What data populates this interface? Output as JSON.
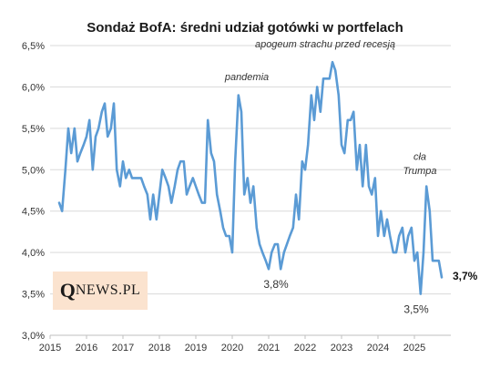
{
  "chart_data": {
    "type": "line",
    "title": "Sondaż BofA: średni udział gotówki w portfelach",
    "xlabel": "",
    "ylabel": "",
    "y_ticks": [
      "3,0%",
      "3,5%",
      "4,0%",
      "4,5%",
      "5,0%",
      "5,5%",
      "6,0%",
      "6,5%"
    ],
    "ylim": [
      3.0,
      6.5
    ],
    "x_ticks": [
      "2015",
      "2016",
      "2017",
      "2018",
      "2019",
      "2020",
      "2021",
      "2022",
      "2023",
      "2024",
      "2025"
    ],
    "xlim": [
      2015.0,
      2026.0
    ],
    "grid": true,
    "line_color": "#5b9bd5",
    "series": [
      {
        "x": [
          2015.25,
          2015.33,
          2015.42,
          2015.5,
          2015.58,
          2015.67,
          2015.75,
          2015.83,
          2015.92,
          2016.0,
          2016.08,
          2016.17,
          2016.25,
          2016.33,
          2016.42,
          2016.5,
          2016.58,
          2016.67,
          2016.75,
          2016.83,
          2016.92,
          2017.0,
          2017.08,
          2017.17,
          2017.25,
          2017.33,
          2017.42,
          2017.5,
          2017.58,
          2017.67,
          2017.75,
          2017.83,
          2017.92,
          2018.0,
          2018.08,
          2018.17,
          2018.25,
          2018.33,
          2018.42,
          2018.5,
          2018.58,
          2018.67,
          2018.75,
          2018.83,
          2018.92,
          2019.0,
          2019.08,
          2019.17,
          2019.25,
          2019.33,
          2019.42,
          2019.5,
          2019.58,
          2019.67,
          2019.75,
          2019.83,
          2019.92,
          2020.0,
          2020.08,
          2020.17,
          2020.25,
          2020.33,
          2020.42,
          2020.5,
          2020.58,
          2020.67,
          2020.75,
          2020.83,
          2020.92,
          2021.0,
          2021.08,
          2021.17,
          2021.25,
          2021.33,
          2021.42,
          2021.5,
          2021.58,
          2021.67,
          2021.75,
          2021.83,
          2021.92,
          2022.0,
          2022.08,
          2022.17,
          2022.25,
          2022.33,
          2022.42,
          2022.5,
          2022.58,
          2022.67,
          2022.75,
          2022.83,
          2022.92,
          2023.0,
          2023.08,
          2023.17,
          2023.25,
          2023.33,
          2023.42,
          2023.5,
          2023.58,
          2023.67,
          2023.75,
          2023.83,
          2023.92,
          2024.0,
          2024.08,
          2024.17,
          2024.25,
          2024.33,
          2024.42,
          2024.5,
          2024.58,
          2024.67,
          2024.75,
          2024.83,
          2024.92,
          2025.0,
          2025.08,
          2025.17,
          2025.25,
          2025.33,
          2025.42,
          2025.5,
          2025.58,
          2025.67,
          2025.75
        ],
        "values": [
          4.6,
          4.5,
          5.0,
          5.5,
          5.2,
          5.5,
          5.1,
          5.2,
          5.3,
          5.4,
          5.6,
          5.0,
          5.4,
          5.5,
          5.7,
          5.8,
          5.4,
          5.5,
          5.8,
          5.0,
          4.8,
          5.1,
          4.9,
          5.0,
          4.9,
          4.9,
          4.9,
          4.9,
          4.8,
          4.7,
          4.4,
          4.7,
          4.4,
          4.7,
          5.0,
          4.9,
          4.8,
          4.6,
          4.8,
          5.0,
          5.1,
          5.1,
          4.7,
          4.8,
          4.9,
          4.8,
          4.7,
          4.6,
          4.6,
          5.6,
          5.2,
          5.1,
          4.7,
          4.5,
          4.3,
          4.2,
          4.2,
          4.0,
          5.1,
          5.9,
          5.7,
          4.7,
          4.9,
          4.6,
          4.8,
          4.3,
          4.1,
          4.0,
          3.9,
          3.8,
          4.0,
          4.1,
          4.1,
          3.8,
          4.0,
          4.1,
          4.2,
          4.3,
          4.7,
          4.4,
          5.1,
          5.0,
          5.3,
          5.9,
          5.6,
          6.0,
          5.7,
          6.1,
          6.1,
          6.1,
          6.3,
          6.2,
          5.9,
          5.3,
          5.2,
          5.6,
          5.6,
          5.7,
          5.0,
          5.3,
          4.8,
          5.3,
          4.8,
          4.7,
          4.9,
          4.2,
          4.5,
          4.2,
          4.4,
          4.2,
          4.0,
          4.0,
          4.2,
          4.3,
          4.0,
          4.2,
          4.3,
          3.9,
          4.0,
          3.5,
          4.0,
          4.8,
          4.5,
          3.9,
          3.9,
          3.9,
          3.7
        ]
      }
    ],
    "annotations": [
      {
        "text": "pandemia",
        "x": 2020.4,
        "y": 6.08
      },
      {
        "text": "apogeum strachu przed recesją",
        "x": 2022.55,
        "y": 6.48
      },
      {
        "text": "cła",
        "x": 2025.15,
        "y": 5.12
      },
      {
        "text": "Trumpa",
        "x": 2025.15,
        "y": 4.95
      }
    ],
    "value_labels": [
      {
        "text": "3,8%",
        "x": 2021.2,
        "y": 3.57
      },
      {
        "text": "3,5%",
        "x": 2025.05,
        "y": 3.27
      },
      {
        "text": "3,7%",
        "x": 2026.05,
        "y": 3.67
      }
    ]
  },
  "logo": {
    "q": "Q",
    "rest": "NEWS.PL"
  }
}
